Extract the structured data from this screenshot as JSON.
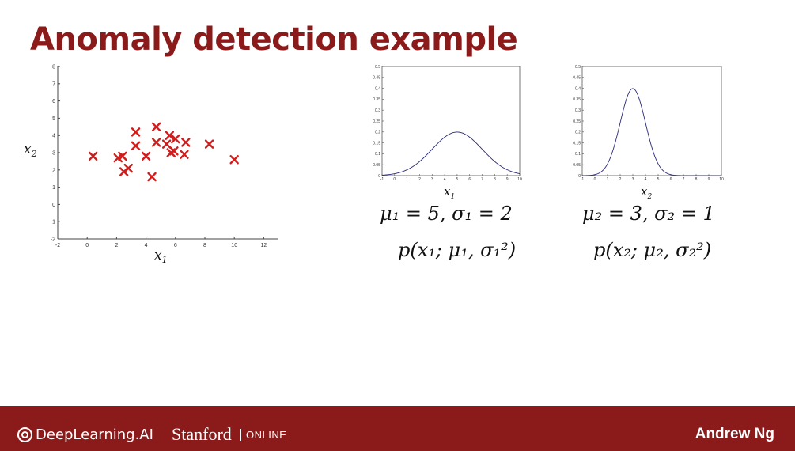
{
  "slide": {
    "title": "Anomaly detection example",
    "footer": {
      "deeplearning": "DeepLearning.AI",
      "stanford": "Stanford",
      "online": "ONLINE",
      "author": "Andrew Ng"
    },
    "accent_color": "#8b1a1a"
  },
  "chart_data": [
    {
      "type": "scatter",
      "xlabel": "x1",
      "ylabel": "x2",
      "xlim": [
        -2,
        13
      ],
      "ylim": [
        -2,
        8
      ],
      "xticks": [
        -2,
        0,
        2,
        4,
        6,
        8,
        10,
        12
      ],
      "yticks": [
        -2,
        -1,
        0,
        1,
        2,
        3,
        4,
        5,
        6,
        7,
        8
      ],
      "marker": "x",
      "color": "#d01c1c",
      "points": [
        [
          0.4,
          2.8
        ],
        [
          2.1,
          2.7
        ],
        [
          2.4,
          2.8
        ],
        [
          2.5,
          1.9
        ],
        [
          2.8,
          2.1
        ],
        [
          3.3,
          4.2
        ],
        [
          3.3,
          3.4
        ],
        [
          4.0,
          2.8
        ],
        [
          4.4,
          1.6
        ],
        [
          4.7,
          4.5
        ],
        [
          4.7,
          3.6
        ],
        [
          5.4,
          3.5
        ],
        [
          5.6,
          4.0
        ],
        [
          5.7,
          3.0
        ],
        [
          5.9,
          3.1
        ],
        [
          6.0,
          3.8
        ],
        [
          6.6,
          2.9
        ],
        [
          6.7,
          3.6
        ],
        [
          8.3,
          3.5
        ],
        [
          10.0,
          2.6
        ]
      ]
    },
    {
      "type": "line",
      "title": "",
      "xlabel": "x1",
      "xlim": [
        -1,
        10
      ],
      "ylim": [
        0,
        0.5
      ],
      "xticks": [
        -1,
        0,
        1,
        2,
        3,
        4,
        5,
        6,
        7,
        8,
        9,
        10
      ],
      "yticks": [
        0,
        0.05,
        0.1,
        0.15,
        0.2,
        0.25,
        0.3,
        0.35,
        0.4,
        0.45,
        0.5
      ],
      "mean": 5,
      "sigma": 2,
      "color": "#2a2a7a"
    },
    {
      "type": "line",
      "title": "",
      "xlabel": "x2",
      "xlim": [
        -1,
        10
      ],
      "ylim": [
        0,
        0.5
      ],
      "xticks": [
        -1,
        0,
        1,
        2,
        3,
        4,
        5,
        6,
        7,
        8,
        9,
        10
      ],
      "yticks": [
        0,
        0.05,
        0.1,
        0.15,
        0.2,
        0.25,
        0.3,
        0.35,
        0.4,
        0.45,
        0.5
      ],
      "mean": 3,
      "sigma": 1,
      "color": "#2a2a7a"
    }
  ],
  "equations": {
    "params1": "μ₁ = 5,  σ₁ = 2",
    "density1": "p(x₁; μ₁, σ₁²)",
    "params2": "μ₂ = 3,  σ₂ = 1",
    "density2": "p(x₂; μ₂, σ₂²)"
  }
}
